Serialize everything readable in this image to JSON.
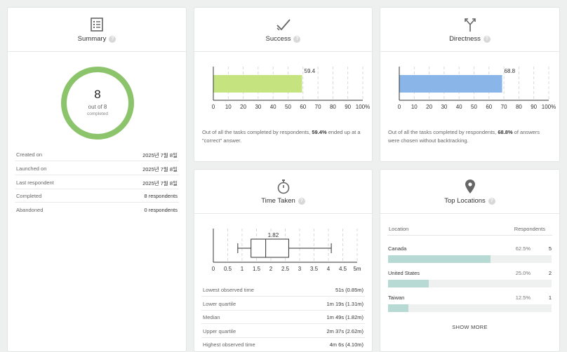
{
  "summary": {
    "title": "Summary",
    "icon": "list-icon",
    "completed_count": "8",
    "out_of_text": "out of 8",
    "completed_text": "completed",
    "completion_fraction": 1.0,
    "ring_color": "#8cc46b",
    "details": [
      {
        "label": "Created on",
        "value": "2025년 7월 8일"
      },
      {
        "label": "Launched on",
        "value": "2025년 7월 8일"
      },
      {
        "label": "Last respondent",
        "value": "2025년 7월 8일"
      },
      {
        "label": "Completed",
        "value": "8 respondents"
      },
      {
        "label": "Abandoned",
        "value": "0 respondents"
      }
    ]
  },
  "success": {
    "title": "Success",
    "icon": "checkmark-icon",
    "description_prefix": "Out of all the tasks completed by respondents, ",
    "description_highlight": "59.4%",
    "description_suffix": " ended up at a \"correct\" answer.",
    "chart_data": {
      "type": "bar",
      "values": [
        59.4
      ],
      "data_label": "59.4",
      "xlim": [
        0,
        100
      ],
      "ticks": [
        "0",
        "10",
        "20",
        "30",
        "40",
        "50",
        "60",
        "70",
        "80",
        "90",
        "100%"
      ],
      "bar_color": "#c5e37e"
    }
  },
  "directness": {
    "title": "Directness",
    "icon": "branch-icon",
    "description_prefix": "Out of all the tasks completed by respondents, ",
    "description_highlight": "68.8%",
    "description_suffix": " of answers were chosen without backtracking.",
    "chart_data": {
      "type": "bar",
      "values": [
        68.8
      ],
      "data_label": "68.8",
      "xlim": [
        0,
        100
      ],
      "ticks": [
        "0",
        "10",
        "20",
        "30",
        "40",
        "50",
        "60",
        "70",
        "80",
        "90",
        "100%"
      ],
      "bar_color": "#89b5e8"
    }
  },
  "time_taken": {
    "title": "Time Taken",
    "icon": "stopwatch-icon",
    "chart_data": {
      "type": "box",
      "min": 0.85,
      "q1": 1.31,
      "median": 1.82,
      "q3": 2.62,
      "max": 4.1,
      "median_label": "1.82",
      "xlim": [
        0,
        5
      ],
      "tick_values": [
        0,
        0.5,
        1,
        1.5,
        2,
        2.5,
        3,
        3.5,
        4,
        4.5,
        5
      ],
      "ticks": [
        "0",
        "0.5",
        "1",
        "1.5",
        "2",
        "2.5",
        "3",
        "3.5",
        "4",
        "4.5",
        "5m"
      ]
    },
    "stats": [
      {
        "label": "Lowest observed time",
        "value": "51s (0.85m)"
      },
      {
        "label": "Lower quartile",
        "value": "1m 19s (1.31m)"
      },
      {
        "label": "Median",
        "value": "1m 49s (1.82m)"
      },
      {
        "label": "Upper quartile",
        "value": "2m 37s (2.62m)"
      },
      {
        "label": "Highest observed time",
        "value": "4m 6s (4.10m)"
      }
    ]
  },
  "locations": {
    "title": "Top Locations",
    "icon": "map-pin-icon",
    "col_location": "Location",
    "col_respondents": "Respondents",
    "rows": [
      {
        "name": "Canada",
        "percent": "62.5%",
        "fraction": 0.625,
        "count": "5"
      },
      {
        "name": "United States",
        "percent": "25.0%",
        "fraction": 0.25,
        "count": "2"
      },
      {
        "name": "Taiwan",
        "percent": "12.5%",
        "fraction": 0.125,
        "count": "1"
      }
    ],
    "show_more": "SHOW MORE"
  },
  "help_glyph": "?"
}
